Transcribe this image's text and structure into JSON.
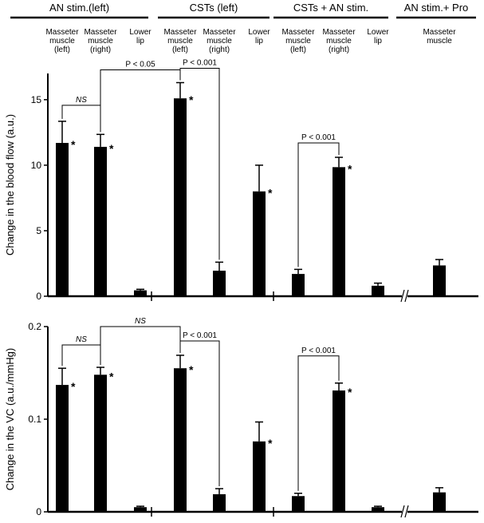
{
  "groups": [
    {
      "title": "AN stim.(left)",
      "categories": [
        "Masseter\nmuscle\n(left)",
        "Masseter\nmuscle\n(right)",
        "Lower\nlip"
      ]
    },
    {
      "title": "CSTs (left)",
      "categories": [
        "Masseter\nmuscle\n(left)",
        "Masseter\nmuscle\n(right)",
        "Lower\nlip"
      ]
    },
    {
      "title": "CSTs + AN stim.",
      "categories": [
        "Masseter\nmuscle\n(left)",
        "Masseter\nmuscle\n(right)",
        "Lower\nlip"
      ]
    },
    {
      "title": "AN stim.+ Pro",
      "categories": [
        "Masseter\nmuscle"
      ]
    }
  ],
  "chart_data": [
    {
      "type": "bar",
      "ylabel": "Change in the blood flow (a.u.)",
      "ylim": [
        0,
        17
      ],
      "yticks": [
        0,
        5,
        10,
        15
      ],
      "ytick_labels": [
        "0",
        "5",
        "10",
        "15"
      ],
      "series": [
        {
          "name": "mean",
          "values": [
            11.7,
            11.4,
            0.45,
            15.1,
            1.95,
            8.0,
            1.7,
            9.85,
            0.8,
            2.35
          ]
        },
        {
          "name": "sem",
          "values": [
            1.65,
            0.95,
            0.08,
            1.2,
            0.65,
            2.0,
            0.35,
            0.75,
            0.2,
            0.45
          ]
        }
      ],
      "significant": [
        true,
        true,
        false,
        true,
        false,
        true,
        false,
        true,
        false,
        false
      ],
      "star_label": "*",
      "comparisons": [
        {
          "a": 0,
          "b": 1,
          "label": "NS",
          "italic": true
        },
        {
          "a": 1,
          "b": 3,
          "label": "P < 0.05",
          "italic": false
        },
        {
          "a": 3,
          "b": 4,
          "label": "P < 0.001",
          "italic": false
        },
        {
          "a": 6,
          "b": 7,
          "label": "P < 0.001",
          "italic": false
        }
      ]
    },
    {
      "type": "bar",
      "ylabel": "Change in the VC (a.u./mmHg)",
      "ylim": [
        0,
        0.2
      ],
      "yticks": [
        0,
        0.1,
        0.2
      ],
      "ytick_labels": [
        "0",
        "0.1",
        "0.2"
      ],
      "series": [
        {
          "name": "mean",
          "values": [
            0.137,
            0.148,
            0.005,
            0.155,
            0.019,
            0.076,
            0.017,
            0.131,
            0.005,
            0.021
          ]
        },
        {
          "name": "sem",
          "values": [
            0.018,
            0.008,
            0.001,
            0.014,
            0.006,
            0.021,
            0.003,
            0.008,
            0.001,
            0.005
          ]
        }
      ],
      "significant": [
        true,
        true,
        false,
        true,
        false,
        true,
        false,
        true,
        false,
        false
      ],
      "star_label": "*",
      "comparisons": [
        {
          "a": 0,
          "b": 1,
          "label": "NS",
          "italic": true
        },
        {
          "a": 1,
          "b": 3,
          "label": "NS",
          "italic": true
        },
        {
          "a": 3,
          "b": 4,
          "label": "P < 0.001",
          "italic": false
        },
        {
          "a": 6,
          "b": 7,
          "label": "P < 0.001",
          "italic": false
        }
      ]
    }
  ]
}
